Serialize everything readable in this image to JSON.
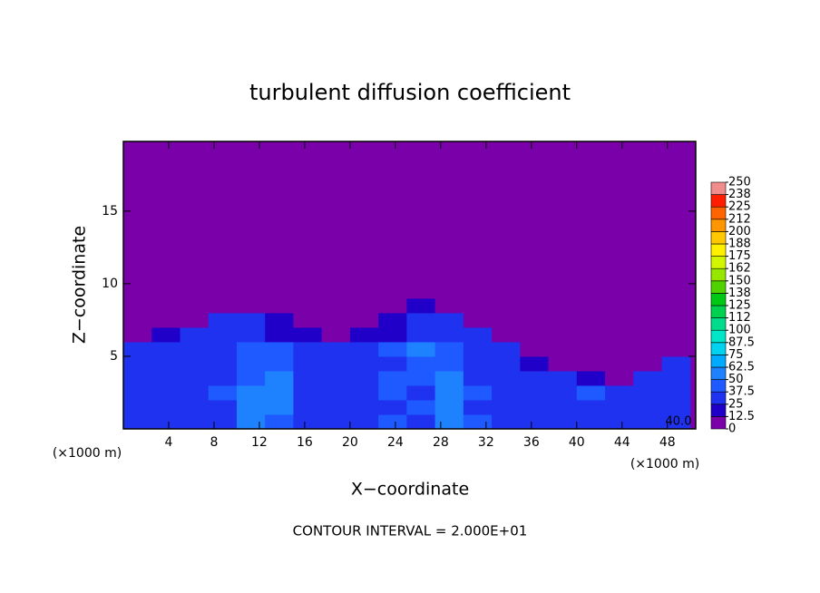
{
  "chart_data": {
    "type": "heatmap",
    "title": "turbulent diffusion coefficient",
    "x_label": "X−coordinate",
    "y_label": "Z−coordinate",
    "x_unit": "(×1000 m)",
    "y_unit": "(×1000 m)",
    "footer": "CONTOUR INTERVAL = 2.000E+01",
    "contour_label": "40.0",
    "xlim": [
      0,
      50.5
    ],
    "ylim": [
      0,
      19.8
    ],
    "xticks": [
      4,
      8,
      12,
      16,
      20,
      24,
      28,
      32,
      36,
      40,
      44,
      48
    ],
    "yticks": [
      5,
      10,
      15
    ],
    "x_bins": [
      0,
      2.5,
      5,
      7.5,
      10,
      12.5,
      15,
      17.5,
      20,
      22.5,
      25,
      27.5,
      30,
      32.5,
      35,
      37.5,
      40,
      42.5,
      45,
      47.5,
      50
    ],
    "y_bins": [
      0,
      1,
      2,
      3,
      4,
      5,
      6,
      7,
      8,
      9,
      10
    ],
    "z": [
      [
        30,
        30,
        35,
        30,
        60,
        45,
        30,
        30,
        35,
        40,
        35,
        55,
        40,
        30,
        25,
        30,
        30,
        30,
        25,
        30
      ],
      [
        35,
        30,
        30,
        35,
        55,
        50,
        30,
        30,
        30,
        35,
        40,
        60,
        35,
        30,
        35,
        25,
        30,
        25,
        30,
        30
      ],
      [
        30,
        30,
        30,
        40,
        50,
        55,
        30,
        25,
        30,
        40,
        35,
        55,
        40,
        30,
        25,
        30,
        40,
        30,
        25,
        30
      ],
      [
        30,
        30,
        30,
        35,
        45,
        50,
        35,
        30,
        30,
        45,
        40,
        50,
        35,
        30,
        30,
        30,
        18,
        6,
        30,
        30
      ],
      [
        30,
        35,
        30,
        35,
        40,
        45,
        35,
        30,
        30,
        35,
        45,
        45,
        30,
        35,
        18,
        6,
        6,
        6,
        6,
        30
      ],
      [
        30,
        30,
        30,
        30,
        40,
        40,
        30,
        30,
        30,
        40,
        50,
        40,
        30,
        30,
        6,
        6,
        6,
        6,
        6,
        6
      ],
      [
        6,
        18,
        30,
        30,
        30,
        18,
        18,
        6,
        18,
        18,
        30,
        30,
        30,
        6,
        6,
        6,
        6,
        6,
        6,
        6
      ],
      [
        6,
        6,
        6,
        30,
        30,
        18,
        6,
        6,
        6,
        18,
        30,
        30,
        6,
        6,
        6,
        6,
        6,
        6,
        6,
        6
      ],
      [
        6,
        6,
        6,
        6,
        6,
        6,
        6,
        6,
        6,
        6,
        18,
        6,
        6,
        6,
        6,
        6,
        6,
        6,
        6,
        6
      ],
      [
        6,
        6,
        6,
        6,
        6,
        6,
        6,
        6,
        6,
        6,
        6,
        6,
        6,
        6,
        6,
        6,
        6,
        6,
        6,
        6
      ]
    ],
    "colorbar": {
      "ticks": [
        0,
        12.5,
        25,
        37.5,
        50,
        62.5,
        75,
        87.5,
        100,
        {
          "value": 112.5,
          "label": "112"
        },
        125,
        {
          "value": 137.5,
          "label": "138"
        },
        150,
        {
          "value": 162.5,
          "label": "162"
        },
        175,
        {
          "value": 187.5,
          "label": "188"
        },
        200,
        {
          "value": 212.5,
          "label": "212"
        },
        225,
        {
          "value": 237.5,
          "label": "238"
        },
        250
      ],
      "colors": [
        "#7a00aa",
        "#2000c8",
        "#1e32f0",
        "#1e5aff",
        "#1e82ff",
        "#00aaff",
        "#00d2f0",
        "#00e6c8",
        "#00dc8c",
        "#00d250",
        "#00c814",
        "#50d200",
        "#96e600",
        "#d2f500",
        "#fff000",
        "#ffc800",
        "#ff9600",
        "#ff6400",
        "#ff1e00",
        "#f08c8c"
      ]
    }
  }
}
